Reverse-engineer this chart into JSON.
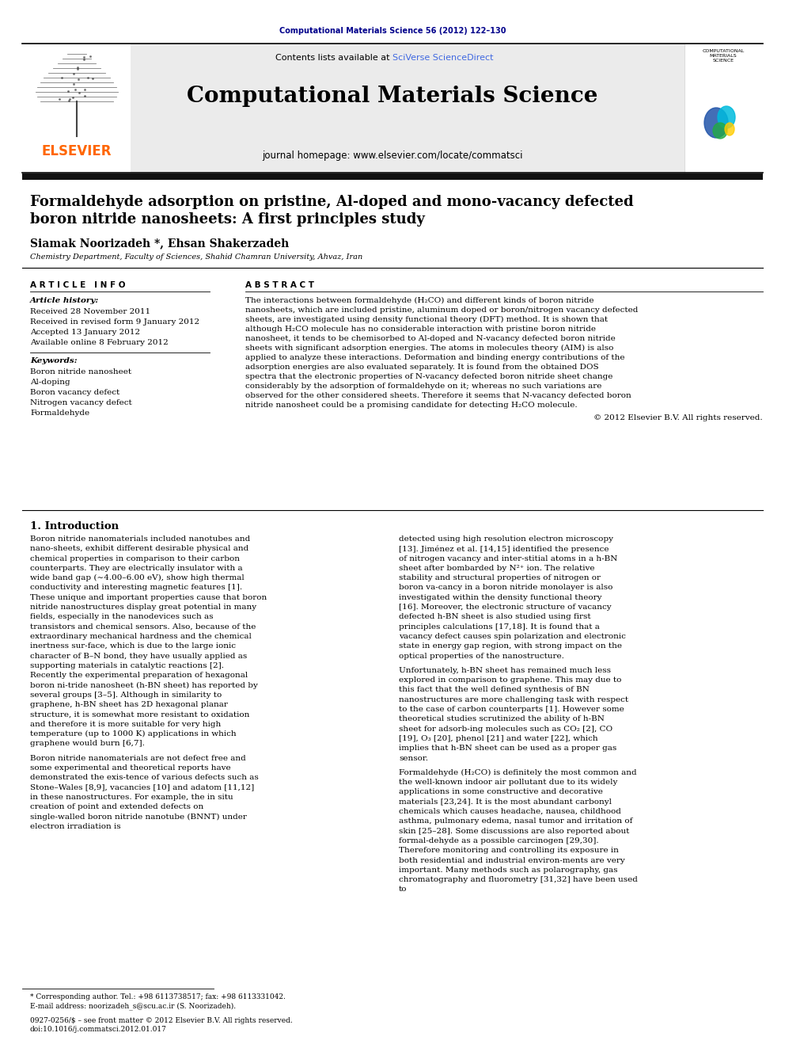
{
  "journal_header": "Computational Materials Science 56 (2012) 122–130",
  "journal_header_color": "#00008B",
  "contents_text": "Contents lists available at ",
  "sciverse_text": "SciVerse ScienceDirect",
  "sciverse_color": "#4169E1",
  "journal_name": "Computational Materials Science",
  "journal_homepage": "journal homepage: www.elsevier.com/locate/commatsci",
  "header_bg": "#E8E8E8",
  "paper_title_line1": "Formaldehyde adsorption on pristine, Al-doped and mono-vacancy defected",
  "paper_title_line2": "boron nitride nanosheets: A first principles study",
  "authors": "Siamak Noorizadeh *, Ehsan Shakerzadeh",
  "affiliation": "Chemistry Department, Faculty of Sciences, Shahid Chamran University, Ahvaz, Iran",
  "article_info_header": "ARTICLE INFO",
  "abstract_header": "ABSTRACT",
  "article_history_title": "Article history:",
  "article_history": [
    "Received 28 November 2011",
    "Received in revised form 9 January 2012",
    "Accepted 13 January 2012",
    "Available online 8 February 2012"
  ],
  "keywords_title": "Keywords:",
  "keywords": [
    "Boron nitride nanosheet",
    "Al-doping",
    "Boron vacancy defect",
    "Nitrogen vacancy defect",
    "Formaldehyde"
  ],
  "abstract_text": "The interactions between formaldehyde (H₂CO) and different kinds of boron nitride nanosheets, which are included pristine, aluminum doped or boron/nitrogen vacancy defected sheets, are investigated using density functional theory (DFT) method. It is shown that although H₂CO molecule has no considerable interaction with pristine boron nitride nanosheet, it tends to be chemisorbed to Al-doped and N-vacancy defected boron nitride sheets with significant adsorption energies. The atoms in molecules theory (AIM) is also applied to analyze these interactions. Deformation and binding energy contributions of the adsorption energies are also evaluated separately. It is found from the obtained DOS spectra that the electronic properties of N-vacancy defected boron nitride sheet change considerably by the adsorption of formaldehyde on it; whereas no such variations are observed for the other considered sheets. Therefore it seems that N-vacancy defected boron nitride nanosheet could be a promising candidate for detecting H₂CO molecule.",
  "copyright": "© 2012 Elsevier B.V. All rights reserved.",
  "intro_header": "1. Introduction",
  "intro_col1_para1": "Boron nitride nanomaterials included nanotubes and nano-sheets, exhibit different desirable physical and chemical properties in comparison to their carbon counterparts. They are electrically insulator with a wide band gap (∼4.00–6.00 eV), show high thermal conductivity and interesting magnetic features [1]. These unique and important properties cause that boron nitride nanostructures display great potential in many fields, especially in the nanodevices such as transistors and chemical sensors. Also, because of the extraordinary mechanical hardness and the chemical inertness sur-face, which is due to the large ionic character of B–N bond, they have usually applied as supporting materials in catalytic reactions [2]. Recently the experimental preparation of hexagonal boron ni-tride nanosheet (h-BN sheet) has reported by several groups [3–5]. Although in similarity to graphene, h-BN sheet has 2D hexagonal planar structure, it is somewhat more resistant to oxidation and therefore it is more suitable for very high temperature (up to 1000 K) applications in which graphene would burn [6,7].",
  "intro_col1_para2": "Boron nitride nanomaterials are not defect free and some experimental and theoretical reports have demonstrated the exis-tence of various defects such as Stone–Wales [8,9], vacancies [10] and adatom [11,12] in these nanostructures. For example, the in situ creation of point and extended defects on single-walled boron nitride nanotube (BNNT) under electron irradiation is",
  "intro_col2_para1": "detected using high resolution electron microscopy [13]. Jiménez et al. [14,15] identified the presence of nitrogen vacancy and inter-stitial atoms in a h-BN sheet after bombarded by N²⁺ ion. The relative stability and structural properties of nitrogen or boron va-cancy in a boron nitride monolayer is also investigated within the density functional theory [16]. Moreover, the electronic structure of vacancy defected h-BN sheet is also studied using first principles calculations [17,18]. It is found that a vacancy defect causes spin polarization and electronic state in energy gap region, with strong impact on the optical properties of the nanostructure.",
  "intro_col2_para2": "Unfortunately, h-BN sheet has remained much less explored in comparison to graphene. This may due to this fact that the well defined synthesis of BN nanostructures are more challenging task with respect to the case of carbon counterparts [1]. However some theoretical studies scrutinized the ability of h-BN sheet for adsorb-ing molecules such as CO₂ [2], CO [19], O₃ [20], phenol [21] and water [22], which implies that h-BN sheet can be used as a proper gas sensor.",
  "intro_col2_para3": "Formaldehyde (H₂CO) is definitely the most common and the well-known indoor air pollutant due to its widely applications in some constructive and decorative materials [23,24]. It is the most abundant carbonyl chemicals which causes headache, nausea, childhood asthma, pulmonary edema, nasal tumor and irritation of skin [25–28]. Some discussions are also reported about formal-dehyde as a possible carcinogen [29,30]. Therefore monitoring and controlling its exposure in both residential and industrial environ-ments are very important. Many methods such as polarography, gas chromatography and fluorometry [31,32] have been used to",
  "footnote_line": "* Corresponding author. Tel.: +98 6113738517; fax: +98 6113331042.",
  "footnote_email": "E-mail address: noorizadeh_s@scu.ac.ir (S. Noorizadeh).",
  "footnote_issn": "0927-0256/$ – see front matter © 2012 Elsevier B.V. All rights reserved.",
  "footnote_doi": "doi:10.1016/j.commatsci.2012.01.017"
}
